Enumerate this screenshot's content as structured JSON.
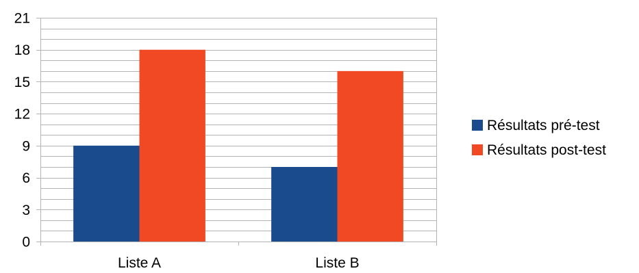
{
  "chart_data": {
    "type": "bar",
    "categories": [
      "Liste A",
      "Liste B"
    ],
    "series": [
      {
        "name": "Résultats pré-test",
        "values": [
          9,
          7
        ],
        "color": "#1a4b8c"
      },
      {
        "name": "Résultats post-test",
        "values": [
          18,
          16
        ],
        "color": "#f04923"
      }
    ],
    "ylim": [
      0,
      21
    ],
    "yticks": [
      "0",
      "3",
      "6",
      "9",
      "12",
      "15",
      "18",
      "21"
    ],
    "minor_grid_step": 1,
    "grid": true,
    "legend_position": "right",
    "title": "",
    "xlabel": "",
    "ylabel": ""
  }
}
